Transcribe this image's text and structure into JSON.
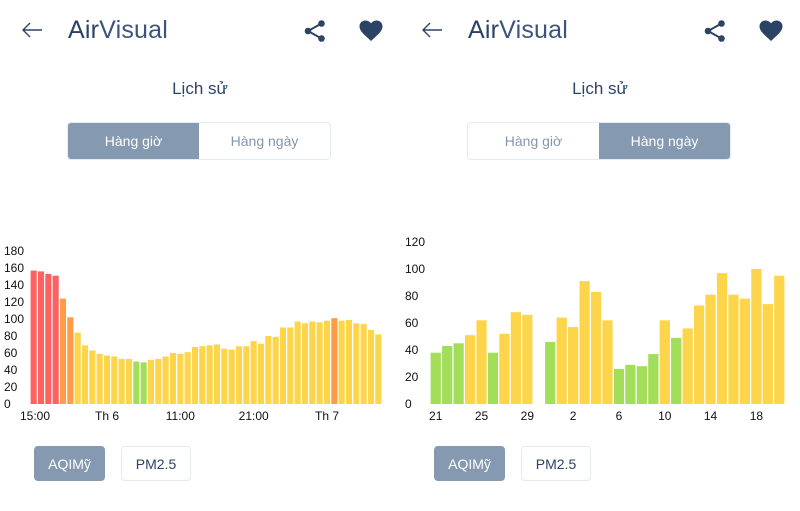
{
  "colors": {
    "primary": "#2c4366",
    "active_toggle": "#8599b0",
    "good": "#a3de5a",
    "moderate": "#fdd54a",
    "unhealthy_sensitive": "#ff9c4a",
    "unhealthy": "#ff6161"
  },
  "panels": [
    {
      "header": {
        "back_icon": "arrow-left-icon",
        "logo_air": "Air",
        "logo_visual": "Visual",
        "share_icon": "share-icon",
        "favorite_icon": "heart-icon"
      },
      "title": "Lịch sử",
      "tabs": [
        {
          "label": "Hàng giờ",
          "active": true
        },
        {
          "label": "Hàng ngày",
          "active": false
        }
      ],
      "metric_buttons": [
        {
          "label": "AQIMỹ",
          "active": true
        },
        {
          "label": "PM2.5",
          "active": false
        }
      ]
    },
    {
      "header": {
        "back_icon": "arrow-left-icon",
        "logo_air": "Air",
        "logo_visual": "Visual",
        "share_icon": "share-icon",
        "favorite_icon": "heart-icon"
      },
      "title": "Lịch sử",
      "tabs": [
        {
          "label": "Hàng giờ",
          "active": false
        },
        {
          "label": "Hàng ngày",
          "active": true
        }
      ],
      "metric_buttons": [
        {
          "label": "AQIMỹ",
          "active": true
        },
        {
          "label": "PM2.5",
          "active": false
        }
      ]
    }
  ],
  "chart_data": [
    {
      "type": "bar",
      "ylim": [
        0,
        180
      ],
      "yticks": [
        0,
        20,
        40,
        60,
        80,
        100,
        120,
        140,
        160,
        180
      ],
      "xticks": [
        {
          "index": 0,
          "label": "15:00"
        },
        {
          "index": 10,
          "label": "Th 6"
        },
        {
          "index": 20,
          "label": "11:00"
        },
        {
          "index": 30,
          "label": "21:00"
        },
        {
          "index": 40,
          "label": "Th 7"
        }
      ],
      "values": [
        157,
        156,
        153,
        151,
        124,
        102,
        84,
        69,
        63,
        59,
        57,
        56,
        53,
        53,
        50,
        49,
        52,
        53,
        56,
        60,
        59,
        61,
        67,
        68,
        69,
        70,
        65,
        64,
        68,
        68,
        74,
        71,
        80,
        79,
        90,
        90,
        97,
        95,
        97,
        96,
        98,
        101,
        98,
        99,
        95,
        94,
        87,
        82
      ],
      "grid": false
    },
    {
      "type": "bar",
      "ylim": [
        0,
        120
      ],
      "yticks": [
        0,
        20,
        40,
        60,
        80,
        100,
        120
      ],
      "categories": [
        "21",
        "22",
        "23",
        "24",
        "25",
        "26",
        "27",
        "28",
        "29",
        "30",
        "31",
        "1",
        "2",
        "3",
        "4",
        "5",
        "6",
        "7",
        "8",
        "9",
        "10",
        "11",
        "12",
        "13",
        "14",
        "15",
        "16",
        "17",
        "18",
        "19",
        "20"
      ],
      "xticks": [
        {
          "index": 0,
          "label": "21"
        },
        {
          "index": 4,
          "label": "25"
        },
        {
          "index": 8,
          "label": "29"
        },
        {
          "index": 12,
          "label": "2"
        },
        {
          "index": 16,
          "label": "6"
        },
        {
          "index": 20,
          "label": "10"
        },
        {
          "index": 24,
          "label": "14"
        },
        {
          "index": 28,
          "label": "18"
        }
      ],
      "values": [
        38,
        43,
        45,
        51,
        62,
        38,
        52,
        68,
        66,
        null,
        46,
        64,
        57,
        91,
        83,
        62,
        26,
        29,
        28,
        37,
        62,
        49,
        56,
        73,
        81,
        97,
        81,
        78,
        100,
        74,
        95
      ],
      "grid": false
    }
  ]
}
